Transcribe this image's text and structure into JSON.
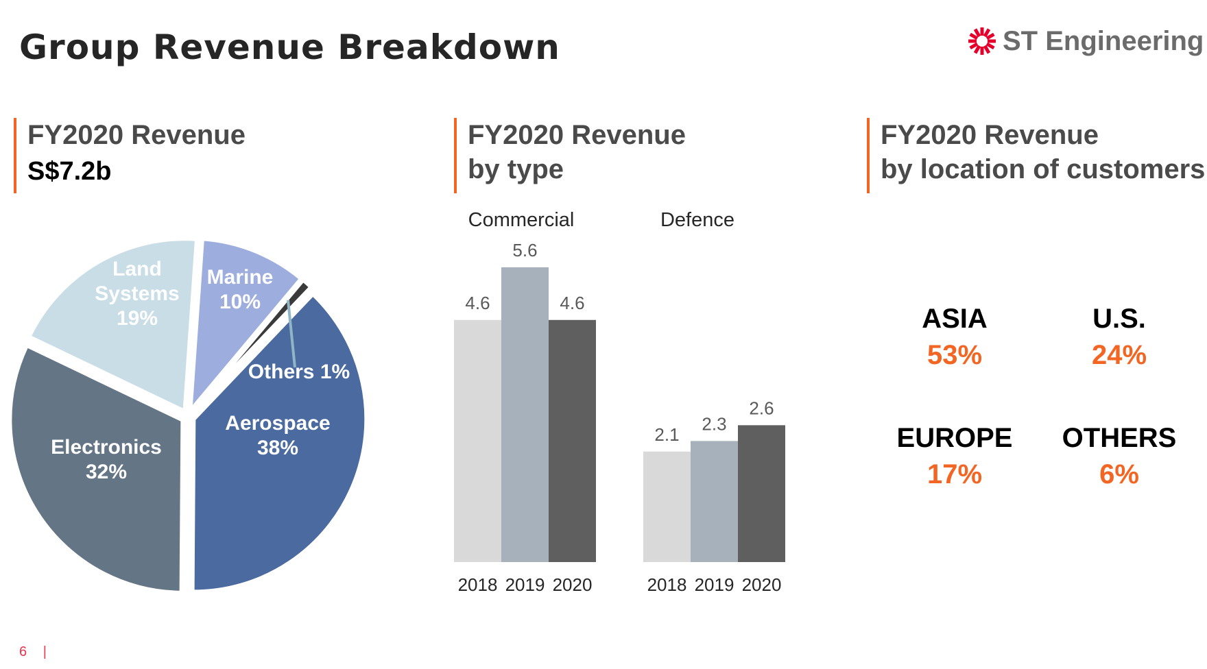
{
  "title": "Group Revenue Breakdown",
  "logo": {
    "text": "ST Engineering",
    "color": "#e4002b",
    "icon": "starburst-icon"
  },
  "sections": {
    "total": {
      "heading": "FY2020 Revenue",
      "value": "S$7.2b"
    },
    "by_type": {
      "heading_line1": "FY2020 Revenue",
      "heading_line2": "by type"
    },
    "by_location": {
      "heading_line1": "FY2020 Revenue",
      "heading_line2": "by location of customers"
    }
  },
  "chart_data": [
    {
      "type": "pie",
      "slices": [
        {
          "label_lines": [
            "Aerospace",
            "38%"
          ],
          "value": 38,
          "color": "#4a6aa0"
        },
        {
          "label_lines": [
            "Electronics",
            "32%"
          ],
          "value": 32,
          "color": "#647586"
        },
        {
          "label_lines": [
            "Land",
            "Systems",
            "19%"
          ],
          "value": 19,
          "color": "#c8dde6"
        },
        {
          "label_lines": [
            "Marine",
            "10%"
          ],
          "value": 10,
          "color": "#9daede"
        },
        {
          "label_lines": [
            "Others 1%"
          ],
          "value": 1,
          "color": "#3a3a3a"
        }
      ]
    },
    {
      "type": "bar",
      "groups": [
        {
          "name": "Commercial",
          "categories": [
            "2018",
            "2019",
            "2020"
          ],
          "values": [
            4.6,
            5.6,
            4.6
          ],
          "value_labels": [
            "4.6",
            "5.6",
            "4.6"
          ]
        },
        {
          "name": "Defence",
          "categories": [
            "2018",
            "2019",
            "2020"
          ],
          "values": [
            2.1,
            2.3,
            2.6
          ],
          "value_labels": [
            "2.1",
            "2.3",
            "2.6"
          ]
        }
      ],
      "colors": [
        "#d9d9d9",
        "#a6b1bb",
        "#5f5f5f"
      ],
      "ylim": [
        0,
        5.6
      ]
    }
  ],
  "locations": [
    {
      "name": "ASIA",
      "pct": "53%"
    },
    {
      "name": "U.S.",
      "pct": "24%"
    },
    {
      "name": "EUROPE",
      "pct": "17%"
    },
    {
      "name": "OTHERS",
      "pct": "6%"
    }
  ],
  "footer": {
    "page": "6",
    "separator": "|"
  }
}
